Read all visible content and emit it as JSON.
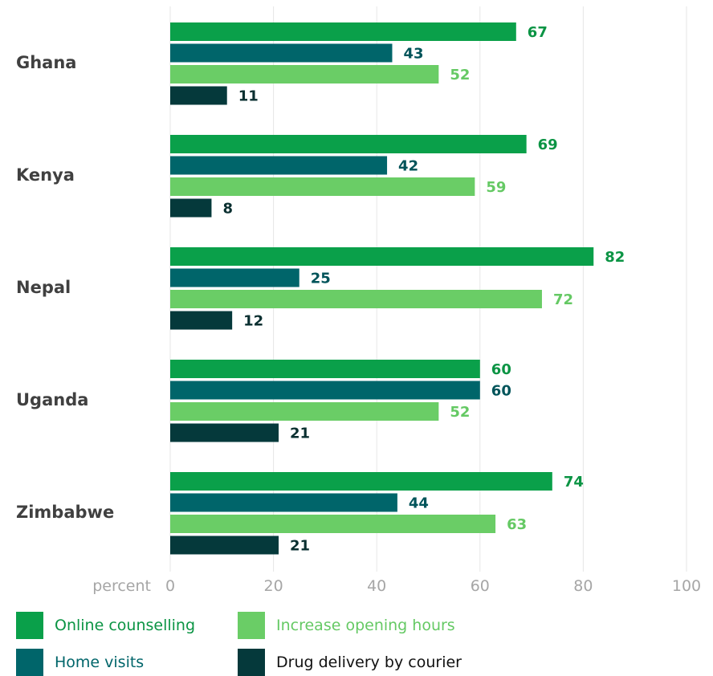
{
  "chart_data": {
    "type": "bar",
    "orientation": "horizontal",
    "categories": [
      "Ghana",
      "Kenya",
      "Nepal",
      "Uganda",
      "Zimbabwe"
    ],
    "series": [
      {
        "name": "Online counselling",
        "values": [
          67,
          69,
          82,
          60,
          74
        ],
        "color": "#0aa04a",
        "label_color": "#0b9444"
      },
      {
        "name": "Home visits",
        "values": [
          43,
          42,
          25,
          60,
          44
        ],
        "color": "#00656a",
        "label_color": "#00545a"
      },
      {
        "name": "Increase opening hours",
        "values": [
          52,
          59,
          72,
          52,
          63
        ],
        "color": "#6acd66",
        "label_color": "#65c964"
      },
      {
        "name": "Drug delivery by courier",
        "values": [
          11,
          8,
          12,
          21,
          21
        ],
        "color": "#05393b",
        "label_color": "#0a2f30"
      }
    ],
    "x_ticks": [
      0,
      20,
      40,
      60,
      80,
      100
    ],
    "xlabel": "percent",
    "xlim": [
      0,
      100
    ],
    "grid": true,
    "legend_position": "bottom"
  }
}
